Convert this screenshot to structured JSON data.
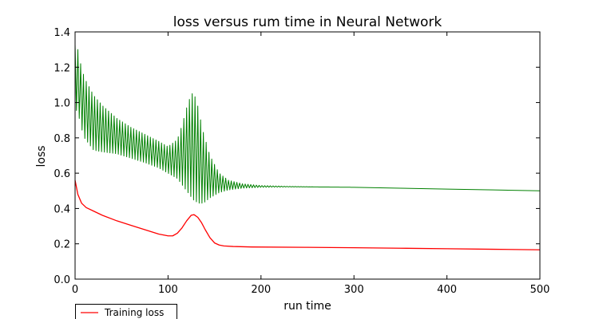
{
  "chart_data": {
    "type": "line",
    "title": "loss versus rum time in Neural Network",
    "xlabel": "run time",
    "ylabel": "loss",
    "xlim": [
      0,
      500
    ],
    "ylim": [
      0,
      1.4
    ],
    "x_ticks": [
      "0",
      "100",
      "200",
      "300",
      "400",
      "500"
    ],
    "y_ticks": [
      "0.0",
      "0.2",
      "0.4",
      "0.6",
      "0.8",
      "1.0",
      "1.2",
      "1.4"
    ],
    "grid": false,
    "legend": {
      "placement": "below-left",
      "entries": [
        "Training loss"
      ]
    },
    "series": [
      {
        "name": "Training loss",
        "color": "#ff0000",
        "style": "smooth",
        "points": [
          [
            0,
            0.56
          ],
          [
            3,
            0.48
          ],
          [
            7,
            0.43
          ],
          [
            12,
            0.405
          ],
          [
            20,
            0.385
          ],
          [
            30,
            0.36
          ],
          [
            45,
            0.33
          ],
          [
            60,
            0.305
          ],
          [
            75,
            0.28
          ],
          [
            90,
            0.255
          ],
          [
            100,
            0.245
          ],
          [
            105,
            0.245
          ],
          [
            110,
            0.26
          ],
          [
            115,
            0.29
          ],
          [
            120,
            0.33
          ],
          [
            125,
            0.362
          ],
          [
            128,
            0.365
          ],
          [
            132,
            0.35
          ],
          [
            136,
            0.32
          ],
          [
            140,
            0.28
          ],
          [
            145,
            0.235
          ],
          [
            150,
            0.205
          ],
          [
            155,
            0.193
          ],
          [
            160,
            0.188
          ],
          [
            170,
            0.185
          ],
          [
            190,
            0.182
          ],
          [
            250,
            0.18
          ],
          [
            300,
            0.178
          ],
          [
            350,
            0.175
          ],
          [
            400,
            0.172
          ],
          [
            450,
            0.169
          ],
          [
            500,
            0.166
          ]
        ]
      },
      {
        "color": "#008000",
        "style": "oscillating",
        "upper": [
          [
            0,
            1.33
          ],
          [
            3,
            1.3
          ],
          [
            6,
            1.22
          ],
          [
            10,
            1.14
          ],
          [
            20,
            1.04
          ],
          [
            30,
            0.98
          ],
          [
            45,
            0.91
          ],
          [
            60,
            0.86
          ],
          [
            75,
            0.82
          ],
          [
            90,
            0.78
          ],
          [
            100,
            0.75
          ],
          [
            110,
            0.79
          ],
          [
            115,
            0.87
          ],
          [
            120,
            0.97
          ],
          [
            125,
            1.05
          ],
          [
            128,
            1.05
          ],
          [
            132,
            0.98
          ],
          [
            137,
            0.85
          ],
          [
            145,
            0.7
          ],
          [
            155,
            0.6
          ],
          [
            165,
            0.56
          ],
          [
            180,
            0.54
          ],
          [
            200,
            0.53
          ],
          [
            230,
            0.525
          ],
          [
            260,
            0.522
          ],
          [
            300,
            0.52
          ]
        ],
        "lower": [
          [
            0,
            0.96
          ],
          [
            3,
            0.95
          ],
          [
            6,
            0.87
          ],
          [
            10,
            0.8
          ],
          [
            20,
            0.73
          ],
          [
            30,
            0.72
          ],
          [
            45,
            0.71
          ],
          [
            60,
            0.685
          ],
          [
            75,
            0.66
          ],
          [
            90,
            0.63
          ],
          [
            100,
            0.6
          ],
          [
            110,
            0.57
          ],
          [
            120,
            0.5
          ],
          [
            127,
            0.45
          ],
          [
            133,
            0.43
          ],
          [
            138,
            0.43
          ],
          [
            145,
            0.46
          ],
          [
            155,
            0.49
          ],
          [
            165,
            0.505
          ],
          [
            180,
            0.515
          ],
          [
            200,
            0.52
          ],
          [
            230,
            0.522
          ],
          [
            260,
            0.522
          ],
          [
            300,
            0.52
          ]
        ],
        "tail": [
          [
            300,
            0.52
          ],
          [
            350,
            0.515
          ],
          [
            400,
            0.51
          ],
          [
            450,
            0.505
          ],
          [
            500,
            0.5
          ]
        ]
      }
    ]
  }
}
